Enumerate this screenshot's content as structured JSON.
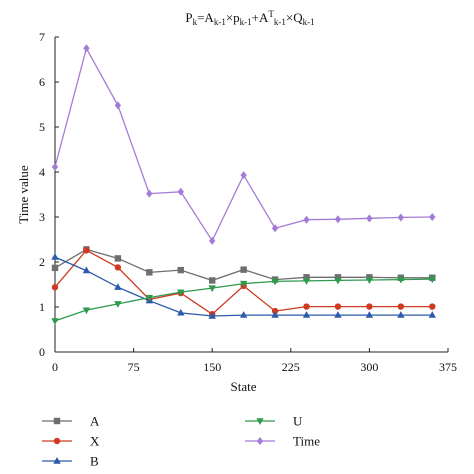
{
  "chart_data": {
    "type": "line",
    "title": {
      "parts": [
        {
          "t": "P",
          "s": "n"
        },
        {
          "t": "k",
          "s": "sub"
        },
        {
          "t": "=A",
          "s": "n"
        },
        {
          "t": "k-1",
          "s": "sub"
        },
        {
          "t": "×p",
          "s": "n"
        },
        {
          "t": "k-1",
          "s": "sub"
        },
        {
          "t": "+A",
          "s": "n"
        },
        {
          "t": "T",
          "s": "sup"
        },
        {
          "t": "k-1",
          "s": "sub"
        },
        {
          "t": "×Q",
          "s": "n"
        },
        {
          "t": "k-1",
          "s": "sub"
        }
      ]
    },
    "xlabel": "State",
    "ylabel": "Time value",
    "xlim": [
      0,
      375
    ],
    "ylim": [
      0,
      7
    ],
    "xticks": [
      0,
      75,
      150,
      225,
      300,
      375
    ],
    "yticks": [
      0,
      1,
      2,
      3,
      4,
      5,
      6,
      7
    ],
    "x": [
      0,
      30,
      60,
      90,
      120,
      150,
      180,
      210,
      240,
      270,
      300,
      330,
      360
    ],
    "series": [
      {
        "name": "A",
        "color": "#6e6e6e",
        "marker": "square",
        "values": [
          1.87,
          2.28,
          2.08,
          1.77,
          1.82,
          1.59,
          1.83,
          1.61,
          1.66,
          1.66,
          1.66,
          1.65,
          1.65
        ]
      },
      {
        "name": "X",
        "color": "#d03a22",
        "marker": "circle",
        "values": [
          1.44,
          2.26,
          1.88,
          1.17,
          1.31,
          0.84,
          1.47,
          0.91,
          1.01,
          1.01,
          1.01,
          1.01,
          1.01
        ]
      },
      {
        "name": "B",
        "color": "#2a5aa8",
        "marker": "triangle-up",
        "values": [
          2.11,
          1.81,
          1.44,
          1.14,
          0.87,
          0.8,
          0.82,
          0.82,
          0.82,
          0.82,
          0.82,
          0.82,
          0.82
        ]
      },
      {
        "name": "U",
        "color": "#2e9a4e",
        "marker": "triangle-down",
        "values": [
          0.69,
          0.93,
          1.07,
          1.21,
          1.33,
          1.42,
          1.52,
          1.57,
          1.58,
          1.59,
          1.6,
          1.61,
          1.62
        ]
      },
      {
        "name": "Time",
        "color": "#a57bd8",
        "marker": "diamond",
        "values": [
          4.11,
          6.75,
          5.48,
          3.52,
          3.56,
          2.47,
          3.93,
          2.75,
          2.94,
          2.95,
          2.97,
          2.99,
          3.0
        ]
      }
    ],
    "legend": {
      "position": "bottom",
      "columns": [
        [
          "A",
          "X",
          "B"
        ],
        [
          "U",
          "Time"
        ]
      ]
    },
    "grid": false
  }
}
